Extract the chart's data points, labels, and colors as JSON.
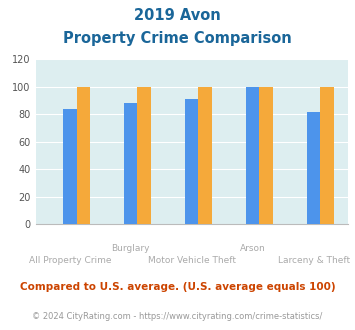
{
  "title_line1": "2019 Avon",
  "title_line2": "Property Crime Comparison",
  "groups": [
    "All Property Crime",
    "Burglary",
    "Motor Vehicle Theft",
    "Arson",
    "Larceny & Theft"
  ],
  "avon": [
    0,
    0,
    0,
    0,
    0
  ],
  "south_dakota": [
    84,
    88,
    91,
    100,
    82
  ],
  "national": [
    100,
    100,
    100,
    100,
    100
  ],
  "avon_color": "#6abf45",
  "sd_color": "#4d94eb",
  "national_color": "#f5a93a",
  "bg_color": "#ddeef0",
  "ylim": [
    0,
    120
  ],
  "yticks": [
    0,
    20,
    40,
    60,
    80,
    100,
    120
  ],
  "top_labels": [
    [
      1,
      "Burglary"
    ],
    [
      3,
      "Arson"
    ]
  ],
  "bottom_labels": [
    [
      0,
      "All Property Crime"
    ],
    [
      2,
      "Motor Vehicle Theft"
    ],
    [
      4,
      "Larceny & Theft"
    ]
  ],
  "footnote1": "Compared to U.S. average. (U.S. average equals 100)",
  "footnote2": "© 2024 CityRating.com - https://www.cityrating.com/crime-statistics/",
  "title_color": "#1a6699",
  "footnote1_color": "#cc4400",
  "footnote2_color": "#999999",
  "xlabel_color": "#aaaaaa"
}
